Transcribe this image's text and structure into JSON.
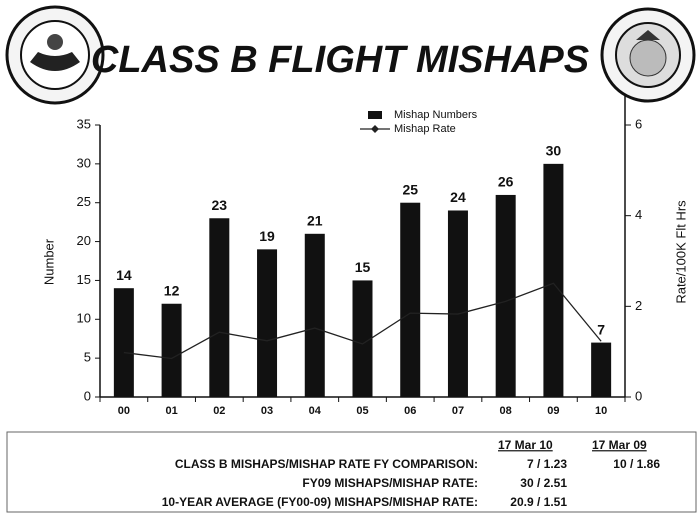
{
  "chart_data": {
    "type": "bar_line",
    "title": "CLASS B FLIGHT MISHAPS",
    "categories": [
      "00",
      "01",
      "02",
      "03",
      "04",
      "05",
      "06",
      "07",
      "08",
      "09",
      "10"
    ],
    "series": [
      {
        "name": "Mishap Numbers",
        "type": "bar",
        "color": "#111111",
        "values": [
          14,
          12,
          23,
          19,
          21,
          15,
          25,
          24,
          26,
          30,
          7
        ]
      },
      {
        "name": "Mishap Rate",
        "type": "line",
        "axis": "y2",
        "color": "#222222",
        "values": [
          0.98,
          0.85,
          1.43,
          1.24,
          1.52,
          1.17,
          1.85,
          1.83,
          2.11,
          2.51,
          1.23
        ]
      }
    ],
    "ylabel": "Number",
    "y2label": "Rate/100K Flt Hrs",
    "ylim": [
      0,
      35
    ],
    "yticks": [
      0,
      5,
      10,
      15,
      20,
      25,
      30,
      35
    ],
    "y2lim": [
      0,
      6
    ],
    "y2ticks": [
      0,
      2,
      4,
      6
    ],
    "legend": "top"
  },
  "table": {
    "columns": [
      "17 Mar 10",
      "17 Mar 09"
    ],
    "rows": [
      [
        "CLASS B MISHAPS/MISHAP RATE FY COMPARISON:",
        "7 / 1.23",
        "10 / 1.86"
      ],
      [
        "FY09 MISHAPS/MISHAP RATE:",
        "30 / 2.51"
      ],
      [
        "10-YEAR AVERAGE (FY00-09) MISHAPS/MISHAP RATE:",
        "20.9 / 1.51"
      ]
    ]
  }
}
